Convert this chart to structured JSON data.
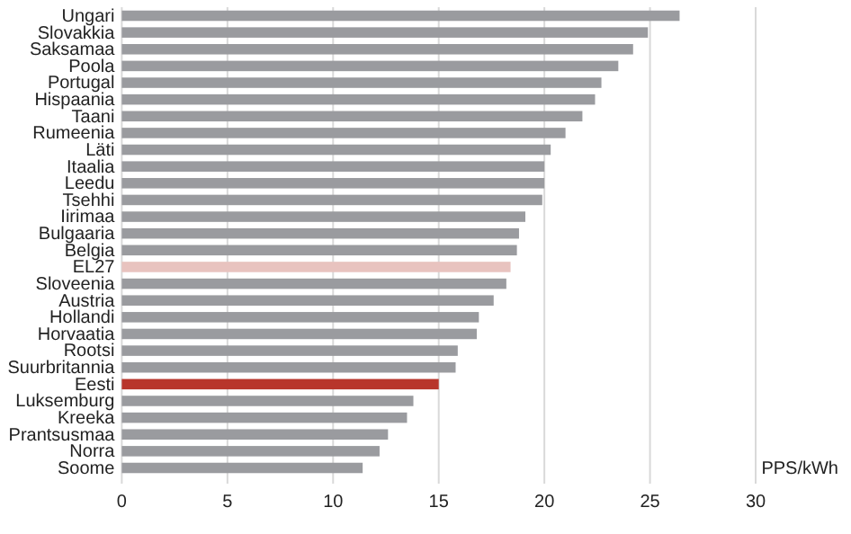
{
  "chart_data": {
    "type": "bar",
    "orientation": "horizontal",
    "xlabel": "PPS/kWh",
    "categories": [
      "Ungari",
      "Slovakkia",
      "Saksamaa",
      "Poola",
      "Portugal",
      "Hispaania",
      "Taani",
      "Rumeenia",
      "Läti",
      "Itaalia",
      "Leedu",
      "Tsehhi",
      "Iirimaa",
      "Bulgaaria",
      "Belgia",
      "EL27",
      "Sloveenia",
      "Austria",
      "Hollandi",
      "Horvaatia",
      "Rootsi",
      "Suurbritannia",
      "Eesti",
      "Luksemburg",
      "Kreeka",
      "Prantsusmaa",
      "Norra",
      "Soome"
    ],
    "values": [
      26.4,
      24.9,
      24.2,
      23.5,
      22.7,
      22.4,
      21.8,
      21.0,
      20.3,
      20.0,
      20.0,
      19.9,
      19.1,
      18.8,
      18.7,
      18.4,
      18.2,
      17.6,
      16.9,
      16.8,
      15.9,
      15.8,
      15.0,
      13.8,
      13.5,
      12.6,
      12.2,
      11.4
    ],
    "colors": [
      "#9a9b9f",
      "#9a9b9f",
      "#9a9b9f",
      "#9a9b9f",
      "#9a9b9f",
      "#9a9b9f",
      "#9a9b9f",
      "#9a9b9f",
      "#9a9b9f",
      "#9a9b9f",
      "#9a9b9f",
      "#9a9b9f",
      "#9a9b9f",
      "#9a9b9f",
      "#9a9b9f",
      "#e8c3bf",
      "#9a9b9f",
      "#9a9b9f",
      "#9a9b9f",
      "#9a9b9f",
      "#9a9b9f",
      "#9a9b9f",
      "#b8352b",
      "#9a9b9f",
      "#9a9b9f",
      "#9a9b9f",
      "#9a9b9f",
      "#9a9b9f"
    ],
    "xlim": [
      0,
      30
    ],
    "xticks": [
      0,
      5,
      10,
      15,
      20,
      25,
      30
    ],
    "grid": "x"
  }
}
